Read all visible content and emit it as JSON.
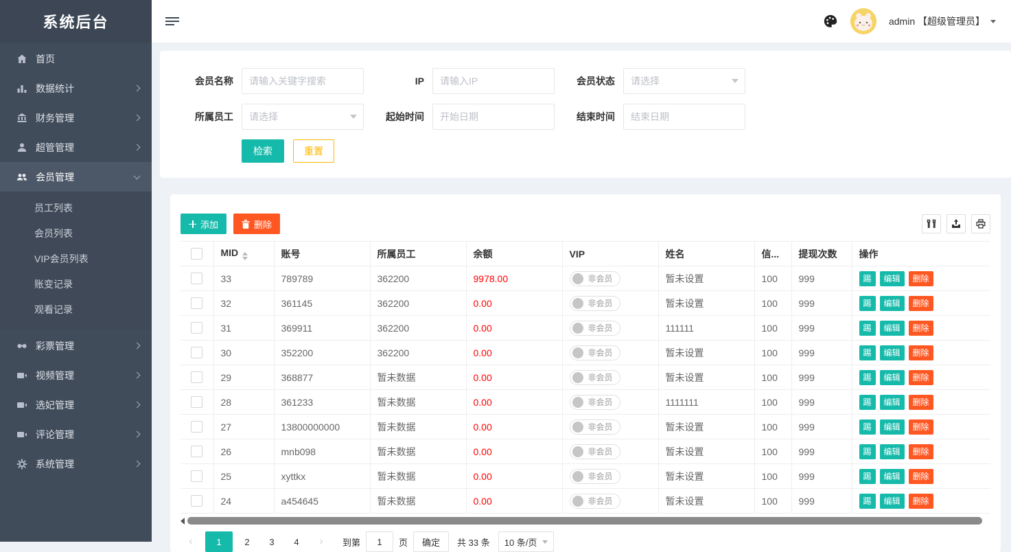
{
  "app": {
    "title": "系统后台"
  },
  "header": {
    "user": "admin 【超级管理员】",
    "icons": [
      "hamburger-icon",
      "palette-icon",
      "avatar",
      "caret-down-icon"
    ]
  },
  "colors": {
    "accent": "#16baaa",
    "danger": "#ff5722",
    "warning": "#ffb800",
    "balance_red": "#ff0000",
    "sidebar_bg": "#414c5b",
    "sidebar_active": "#4c5767"
  },
  "sidebar": {
    "items": [
      {
        "icon": "home-icon",
        "label": "首页",
        "has_children": false
      },
      {
        "icon": "chart-icon",
        "label": "数据统计",
        "has_children": true
      },
      {
        "icon": "bank-icon",
        "label": "财务管理",
        "has_children": true
      },
      {
        "icon": "user-icon",
        "label": "超管管理",
        "has_children": true
      },
      {
        "icon": "users-icon",
        "label": "会员管理",
        "has_children": true,
        "expanded": true,
        "children": [
          {
            "label": "员工列表"
          },
          {
            "label": "会员列表"
          },
          {
            "label": "VIP会员列表"
          },
          {
            "label": "账变记录"
          },
          {
            "label": "观看记录"
          }
        ]
      },
      {
        "icon": "mask-icon",
        "label": "彩票管理",
        "has_children": true
      },
      {
        "icon": "video-icon",
        "label": "视频管理",
        "has_children": true
      },
      {
        "icon": "video-icon",
        "label": "选妃管理",
        "has_children": true
      },
      {
        "icon": "video-icon",
        "label": "评论管理",
        "has_children": true
      },
      {
        "icon": "gear-icon",
        "label": "系统管理",
        "has_children": true
      }
    ]
  },
  "filters": [
    {
      "label": "会员名称",
      "placeholder": "请输入关键字搜索",
      "type": "text"
    },
    {
      "label": "IP",
      "placeholder": "请输入IP",
      "type": "text"
    },
    {
      "label": "会员状态",
      "placeholder": "请选择",
      "type": "select"
    },
    {
      "label": "所属员工",
      "placeholder": "请选择",
      "type": "select"
    },
    {
      "label": "起始时间",
      "placeholder": "开始日期",
      "type": "date"
    },
    {
      "label": "结束时间",
      "placeholder": "结束日期",
      "type": "date"
    }
  ],
  "filter_actions": {
    "search": "检索",
    "reset": "重置"
  },
  "table": {
    "toolbar": {
      "add": "添加",
      "delete": "删除",
      "icons": [
        "columns-icon",
        "export-icon",
        "print-icon"
      ]
    },
    "columns": [
      "MID",
      "账号",
      "所属员工",
      "余额",
      "VIP",
      "姓名",
      "信...",
      "提现次数",
      "操作"
    ],
    "row_actions": [
      "踢",
      "编辑",
      "删除"
    ],
    "rows": [
      {
        "mid": "33",
        "account": "789789",
        "employee": "362200",
        "balance": "9978.00",
        "vip": "非会员",
        "name": "暂未设置",
        "credit": "100",
        "withdrawals": "999"
      },
      {
        "mid": "32",
        "account": "361145",
        "employee": "362200",
        "balance": "0.00",
        "vip": "非会员",
        "name": "暂未设置",
        "credit": "100",
        "withdrawals": "999"
      },
      {
        "mid": "31",
        "account": "369911",
        "employee": "362200",
        "balance": "0.00",
        "vip": "非会员",
        "name": "111111",
        "credit": "100",
        "withdrawals": "999"
      },
      {
        "mid": "30",
        "account": "352200",
        "employee": "362200",
        "balance": "0.00",
        "vip": "非会员",
        "name": "暂未设置",
        "credit": "100",
        "withdrawals": "999"
      },
      {
        "mid": "29",
        "account": "368877",
        "employee": "暂未数据",
        "balance": "0.00",
        "vip": "非会员",
        "name": "暂未设置",
        "credit": "100",
        "withdrawals": "999"
      },
      {
        "mid": "28",
        "account": "361233",
        "employee": "暂未数据",
        "balance": "0.00",
        "vip": "非会员",
        "name": "1111111",
        "credit": "100",
        "withdrawals": "999"
      },
      {
        "mid": "27",
        "account": "13800000000",
        "employee": "暂未数据",
        "balance": "0.00",
        "vip": "非会员",
        "name": "暂未设置",
        "credit": "100",
        "withdrawals": "999"
      },
      {
        "mid": "26",
        "account": "mnb098",
        "employee": "暂未数据",
        "balance": "0.00",
        "vip": "非会员",
        "name": "暂未设置",
        "credit": "100",
        "withdrawals": "999"
      },
      {
        "mid": "25",
        "account": "xyttkx",
        "employee": "暂未数据",
        "balance": "0.00",
        "vip": "非会员",
        "name": "暂未设置",
        "credit": "100",
        "withdrawals": "999"
      },
      {
        "mid": "24",
        "account": "a454645",
        "employee": "暂未数据",
        "balance": "0.00",
        "vip": "非会员",
        "name": "暂未设置",
        "credit": "100",
        "withdrawals": "999"
      }
    ]
  },
  "pagination": {
    "prev": "‹",
    "next": "›",
    "pages": [
      "1",
      "2",
      "3",
      "4"
    ],
    "current": "1",
    "jump_prefix": "到第",
    "jump_value": "1",
    "jump_suffix": "页",
    "confirm_label": "确定",
    "total_label": "共 33 条",
    "page_size_label": "10 条/页"
  }
}
